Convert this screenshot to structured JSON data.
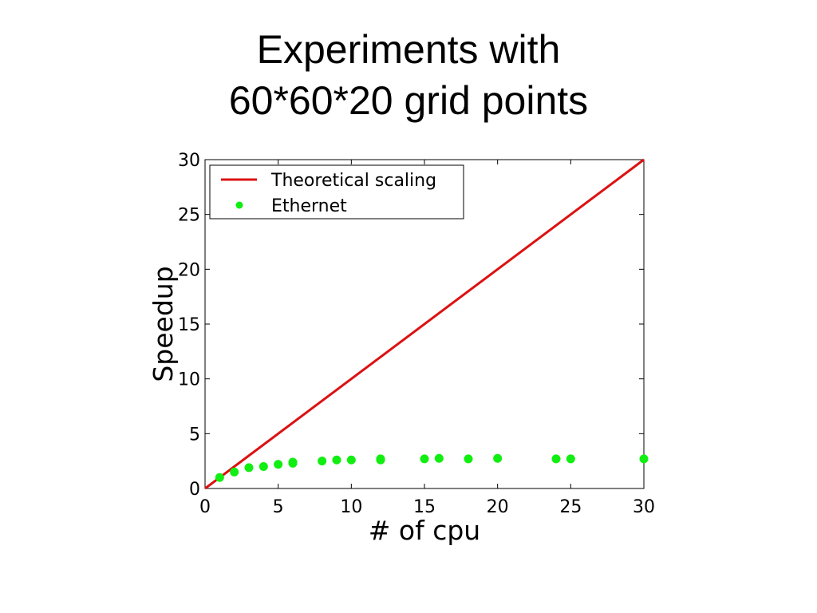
{
  "slide": {
    "title_line1": "Experiments with",
    "title_line2": "60*60*20 grid points"
  },
  "chart_data": {
    "type": "scatter",
    "xlabel": "# of cpu",
    "ylabel": "Speedup",
    "xlim": [
      0,
      30
    ],
    "ylim": [
      0,
      30
    ],
    "xticks": [
      0,
      5,
      10,
      15,
      20,
      25,
      30
    ],
    "yticks": [
      0,
      5,
      10,
      15,
      20,
      25,
      30
    ],
    "grid": false,
    "legend_position": "top-left",
    "series": [
      {
        "name": "Theoretical scaling",
        "kind": "line",
        "color": "#dd1111",
        "x": [
          0,
          30
        ],
        "y": [
          0,
          30
        ]
      },
      {
        "name": "Ethernet",
        "kind": "points",
        "color": "#11ee11",
        "x": [
          1,
          2,
          3,
          4,
          5,
          6,
          6,
          8,
          9,
          10,
          12,
          12,
          15,
          16,
          18,
          20,
          24,
          25,
          30
        ],
        "y": [
          1.0,
          1.5,
          1.9,
          2.0,
          2.2,
          2.3,
          2.4,
          2.5,
          2.6,
          2.6,
          2.6,
          2.7,
          2.7,
          2.75,
          2.7,
          2.75,
          2.7,
          2.7,
          2.7
        ]
      }
    ]
  }
}
